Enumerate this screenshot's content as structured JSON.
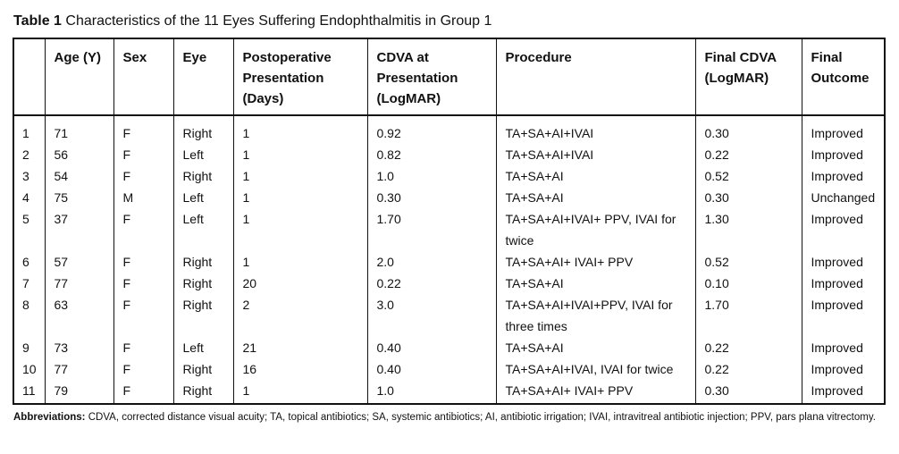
{
  "title": {
    "label": "Table 1",
    "text": "Characteristics of the 11 Eyes Suffering Endophthalmitis in Group 1"
  },
  "headers": [
    "",
    "Age (Y)",
    "Sex",
    "Eye",
    "Postoperative Presentation (Days)",
    "CDVA at Presentation (LogMAR)",
    "Procedure",
    "Final CDVA (LogMAR)",
    "Final Outcome"
  ],
  "rows": [
    [
      "1",
      "71",
      "F",
      "Right",
      "1",
      "0.92",
      "TA+SA+AI+IVAI",
      "0.30",
      "Improved"
    ],
    [
      "2",
      "56",
      "F",
      "Left",
      "1",
      "0.82",
      "TA+SA+AI+IVAI",
      "0.22",
      "Improved"
    ],
    [
      "3",
      "54",
      "F",
      "Right",
      "1",
      "1.0",
      "TA+SA+AI",
      "0.52",
      "Improved"
    ],
    [
      "4",
      "75",
      "M",
      "Left",
      "1",
      "0.30",
      "TA+SA+AI",
      "0.30",
      "Unchanged"
    ],
    [
      "5",
      "37",
      "F",
      "Left",
      "1",
      "1.70",
      "TA+SA+AI+IVAI+ PPV, IVAI for twice",
      "1.30",
      "Improved"
    ],
    [
      "6",
      "57",
      "F",
      "Right",
      "1",
      "2.0",
      "TA+SA+AI+ IVAI+ PPV",
      "0.52",
      "Improved"
    ],
    [
      "7",
      "77",
      "F",
      "Right",
      "20",
      "0.22",
      "TA+SA+AI",
      "0.10",
      "Improved"
    ],
    [
      "8",
      "63",
      "F",
      "Right",
      "2",
      "3.0",
      "TA+SA+AI+IVAI+PPV, IVAI for three times",
      "1.70",
      "Improved"
    ],
    [
      "9",
      "73",
      "F",
      "Left",
      "21",
      "0.40",
      "TA+SA+AI",
      "0.22",
      "Improved"
    ],
    [
      "10",
      "77",
      "F",
      "Right",
      "16",
      "0.40",
      "TA+SA+AI+IVAI, IVAI for twice",
      "0.22",
      "Improved"
    ],
    [
      "11",
      "79",
      "F",
      "Right",
      "1",
      "1.0",
      "TA+SA+AI+ IVAI+ PPV",
      "0.30",
      "Improved"
    ]
  ],
  "footnote": {
    "label": "Abbreviations:",
    "text": "CDVA, corrected distance visual acuity; TA, topical antibiotics; SA, systemic antibiotics; AI, antibiotic irrigation; IVAI, intravitreal antibiotic injection; PPV, pars plana vitrectomy."
  }
}
